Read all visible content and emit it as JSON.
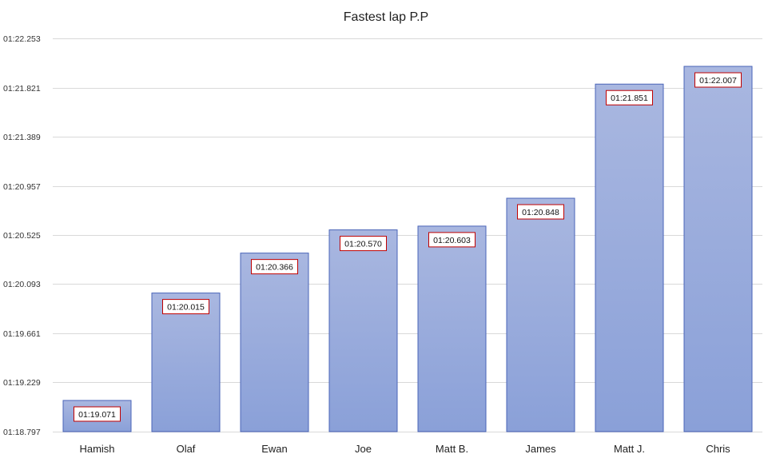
{
  "chart_data": {
    "type": "bar",
    "title": "Fastest lap P.P",
    "xlabel": "",
    "ylabel": "",
    "categories": [
      "Hamish",
      "Olaf",
      "Ewan",
      "Joe",
      "Matt B.",
      "James",
      "Matt J.",
      "Chris"
    ],
    "values_seconds": [
      79.071,
      80.015,
      80.366,
      80.57,
      80.603,
      80.848,
      81.851,
      82.007
    ],
    "data_labels": [
      "01:19.071",
      "01:20.015",
      "01:20.366",
      "01:20.570",
      "01:20.603",
      "01:20.848",
      "01:21.851",
      "01:22.007"
    ],
    "ylim_seconds": [
      78.797,
      82.253
    ],
    "y_tick_values_seconds": [
      78.797,
      79.229,
      79.661,
      80.093,
      80.525,
      80.957,
      81.389,
      81.821,
      82.253
    ],
    "y_tick_labels": [
      "01:18.797",
      "01:19.229",
      "01:19.661",
      "01:20.093",
      "01:20.525",
      "01:20.957",
      "01:21.389",
      "01:21.821",
      "01:22.253"
    ],
    "grid": true,
    "legend": "none",
    "colors": {
      "bar_top": "#a9b7e0",
      "bar_bottom": "#8aa0d8",
      "bar_border": "#4a64b8",
      "gridline": "#d9d9d9",
      "label_border": "#c00000"
    }
  }
}
